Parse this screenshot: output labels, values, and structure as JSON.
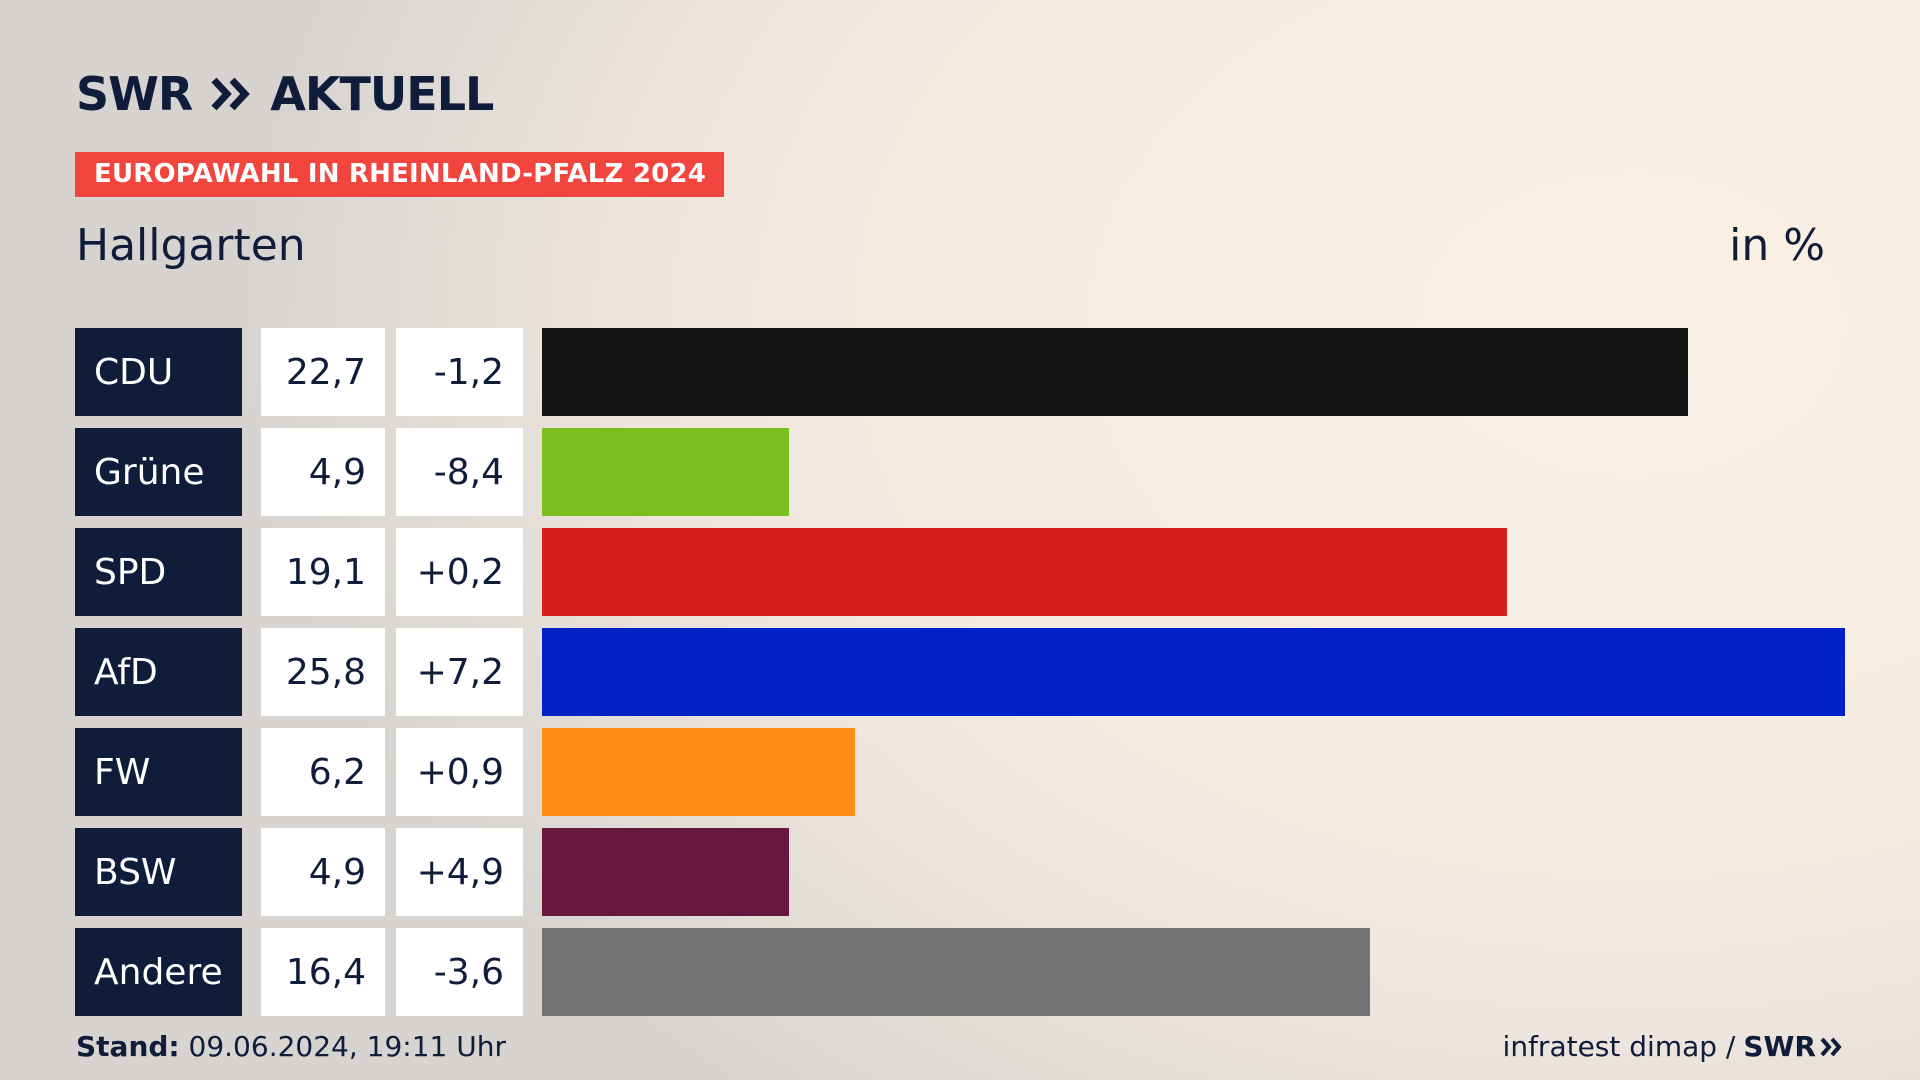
{
  "header": {
    "logo_text": "SWR",
    "logo_suffix": "AKTUELL",
    "banner": "EUROPAWAHL IN RHEINLAND-PFALZ 2024",
    "place": "Hallgarten",
    "unit": "in %"
  },
  "footer": {
    "stand_label": "Stand:",
    "stand_value": "09.06.2024, 19:11 Uhr",
    "source": "infratest dimap /",
    "source_logo": "SWR"
  },
  "colors": {
    "label_bg": "#0f1c3a",
    "brand_red": "#f2453d",
    "text": "#0f1c3a"
  },
  "chart_data": {
    "type": "bar",
    "orientation": "horizontal",
    "categories": [
      "CDU",
      "Grüne",
      "SPD",
      "AfD",
      "FW",
      "BSW",
      "Andere"
    ],
    "values": [
      22.7,
      4.9,
      19.1,
      25.8,
      6.2,
      4.9,
      16.4
    ],
    "value_labels": [
      "22,7",
      "4,9",
      "19,1",
      "25,8",
      "6,2",
      "4,9",
      "16,4"
    ],
    "changes": [
      "-1,2",
      "-8,4",
      "+0,2",
      "+7,2",
      "+0,9",
      "+4,9",
      "-3,6"
    ],
    "colors": [
      "#141414",
      "#7abf1d",
      "#d7201e",
      "#0020c8",
      "#ff8c14",
      "#66183f",
      "#737375"
    ],
    "xlim": [
      0,
      25.8
    ],
    "grid": false,
    "legend": "none"
  }
}
